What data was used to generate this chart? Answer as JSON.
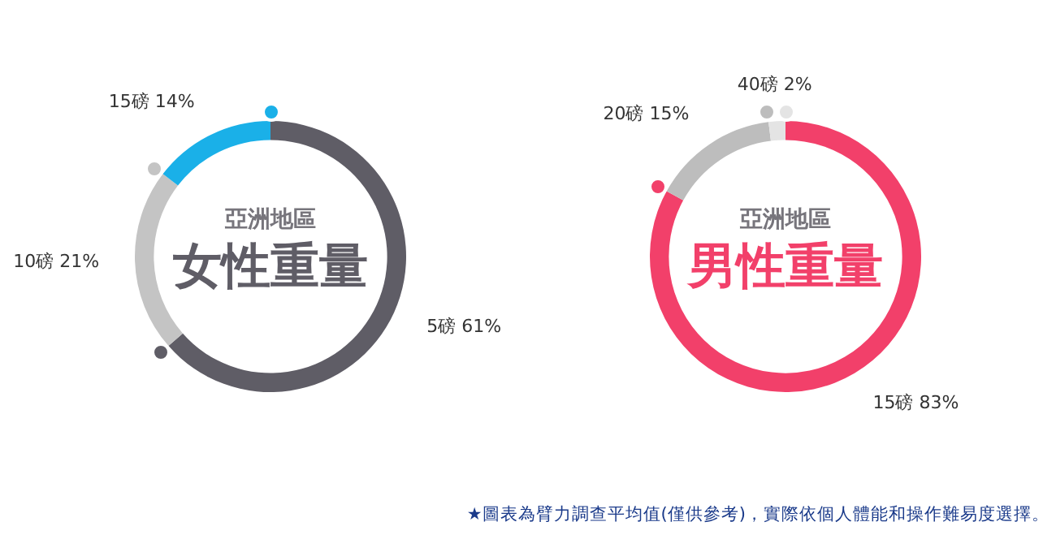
{
  "chart_data": [
    {
      "type": "donut",
      "subtitle": "亞洲地區",
      "title": "女性重量",
      "categories": [
        "5磅",
        "10磅",
        "15磅"
      ],
      "values": [
        61,
        21,
        14
      ],
      "value_labels": [
        "61%",
        "21%",
        "14%"
      ],
      "colors": [
        "#5f5d66",
        "#c4c4c4",
        "#1ab0e8"
      ],
      "legend": false
    },
    {
      "type": "donut",
      "subtitle": "亞洲地區",
      "title": "男性重量",
      "categories": [
        "15磅",
        "20磅",
        "40磅"
      ],
      "values": [
        83,
        15,
        2
      ],
      "value_labels": [
        "83%",
        "15%",
        "2%"
      ],
      "colors": [
        "#f2406a",
        "#bdbdbd",
        "#e4e4e4"
      ],
      "legend": false,
      "annotations": [
        "★圖表為臂力調查平均值(僅供參考)，實際依個人體能和操作難易度選擇。"
      ]
    }
  ]
}
